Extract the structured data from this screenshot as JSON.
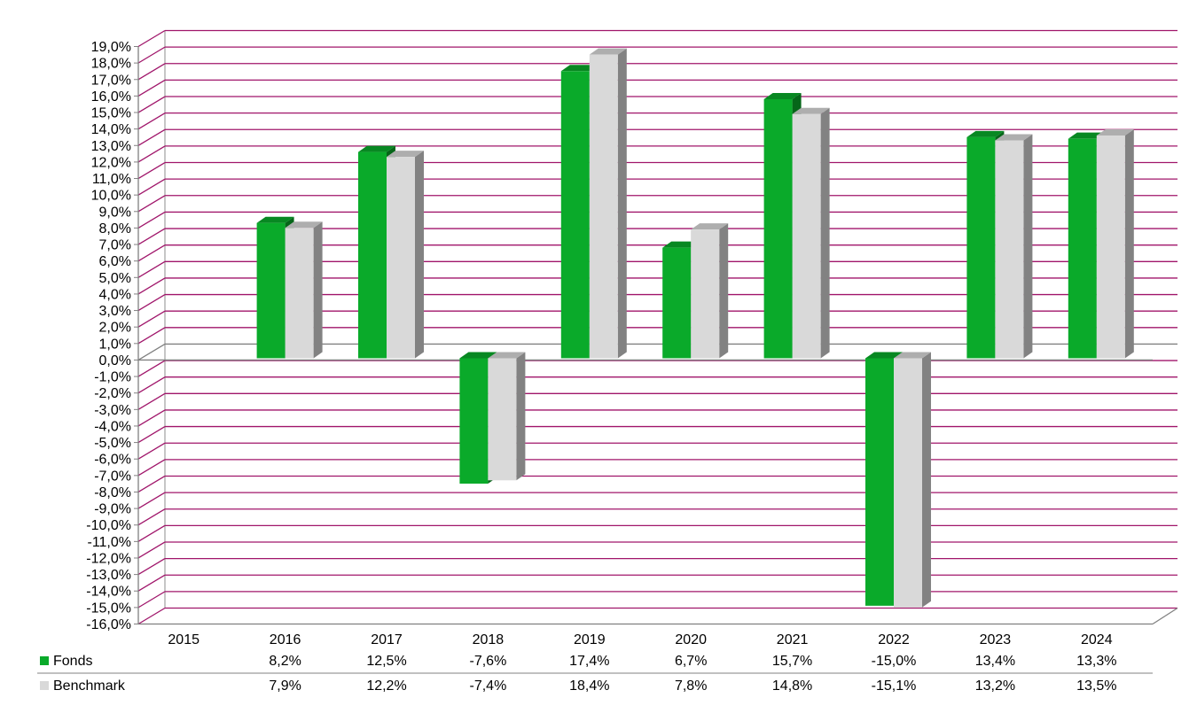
{
  "chart_data": {
    "type": "bar",
    "title": "",
    "xlabel": "",
    "ylabel": "",
    "categories": [
      "2015",
      "2016",
      "2017",
      "2018",
      "2019",
      "2020",
      "2021",
      "2022",
      "2023",
      "2024"
    ],
    "series": [
      {
        "name": "Fonds",
        "color": "#0aaa2a",
        "values": [
          null,
          8.2,
          12.5,
          -7.6,
          17.4,
          6.7,
          15.7,
          -15.0,
          13.4,
          13.3
        ],
        "labels": [
          "",
          "8,2%",
          "12,5%",
          "-7,6%",
          "17,4%",
          "6,7%",
          "15,7%",
          "-15,0%",
          "13,4%",
          "13,3%"
        ]
      },
      {
        "name": "Benchmark",
        "color": "#d9d9d9",
        "values": [
          null,
          7.9,
          12.2,
          -7.4,
          18.4,
          7.8,
          14.8,
          -15.1,
          13.2,
          13.5
        ],
        "labels": [
          "",
          "7,9%",
          "12,2%",
          "-7,4%",
          "18,4%",
          "7,8%",
          "14,8%",
          "-15,1%",
          "13,2%",
          "13,5%"
        ]
      }
    ],
    "ylim": [
      -16,
      19
    ],
    "ytick_step": 1,
    "ytick_format": "percent-comma-1",
    "grid": true,
    "grid_color": "#a0156a",
    "legend": "data-table-below",
    "three_d": true
  }
}
